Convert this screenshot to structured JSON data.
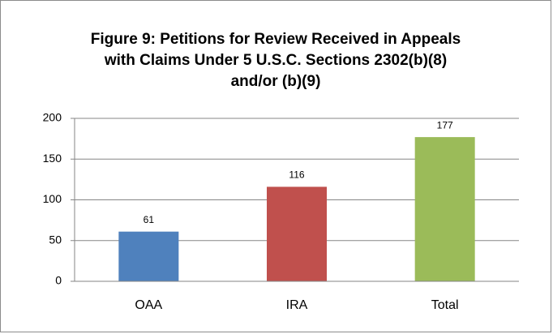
{
  "chart_data": {
    "type": "bar",
    "title": "Figure 9: Petitions for Review Received in Appeals with Claims Under 5 U.S.C. Sections 2302(b)(8) and/or (b)(9)",
    "categories": [
      "OAA",
      "IRA",
      "Total"
    ],
    "values": [
      61,
      116,
      177
    ],
    "colors": [
      "#4f81bd",
      "#c0504d",
      "#9bbb59"
    ],
    "ylim": [
      0,
      200
    ],
    "yticks": [
      0,
      50,
      100,
      150,
      200
    ],
    "grid": true
  }
}
